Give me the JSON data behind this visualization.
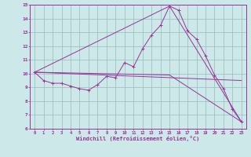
{
  "xlabel": "Windchill (Refroidissement éolien,°C)",
  "xlim": [
    -0.5,
    23.5
  ],
  "ylim": [
    6,
    15
  ],
  "xticks": [
    0,
    1,
    2,
    3,
    4,
    5,
    6,
    7,
    8,
    9,
    10,
    11,
    12,
    13,
    14,
    15,
    16,
    17,
    18,
    19,
    20,
    21,
    22,
    23
  ],
  "yticks": [
    6,
    7,
    8,
    9,
    10,
    11,
    12,
    13,
    14,
    15
  ],
  "bg_color": "#cce8e8",
  "line_color": "#993399",
  "grid_color": "#99bbbb",
  "series_main": {
    "x": [
      0,
      1,
      2,
      3,
      4,
      5,
      6,
      7,
      8,
      9,
      10,
      11,
      12,
      13,
      14,
      15,
      16,
      17,
      18,
      19,
      20,
      21,
      22,
      23
    ],
    "y": [
      10.1,
      9.5,
      9.3,
      9.3,
      9.1,
      8.9,
      8.8,
      9.2,
      9.8,
      9.7,
      10.8,
      10.5,
      11.8,
      12.8,
      13.5,
      14.9,
      14.6,
      13.1,
      12.5,
      11.3,
      9.9,
      8.9,
      7.4,
      6.5
    ]
  },
  "line_upper": {
    "x": [
      0,
      15,
      23
    ],
    "y": [
      10.1,
      14.9,
      6.5
    ]
  },
  "line_lower": {
    "x": [
      0,
      15,
      23
    ],
    "y": [
      10.1,
      9.9,
      6.5
    ]
  },
  "line_mid": {
    "x": [
      0,
      23
    ],
    "y": [
      10.1,
      9.5
    ]
  }
}
